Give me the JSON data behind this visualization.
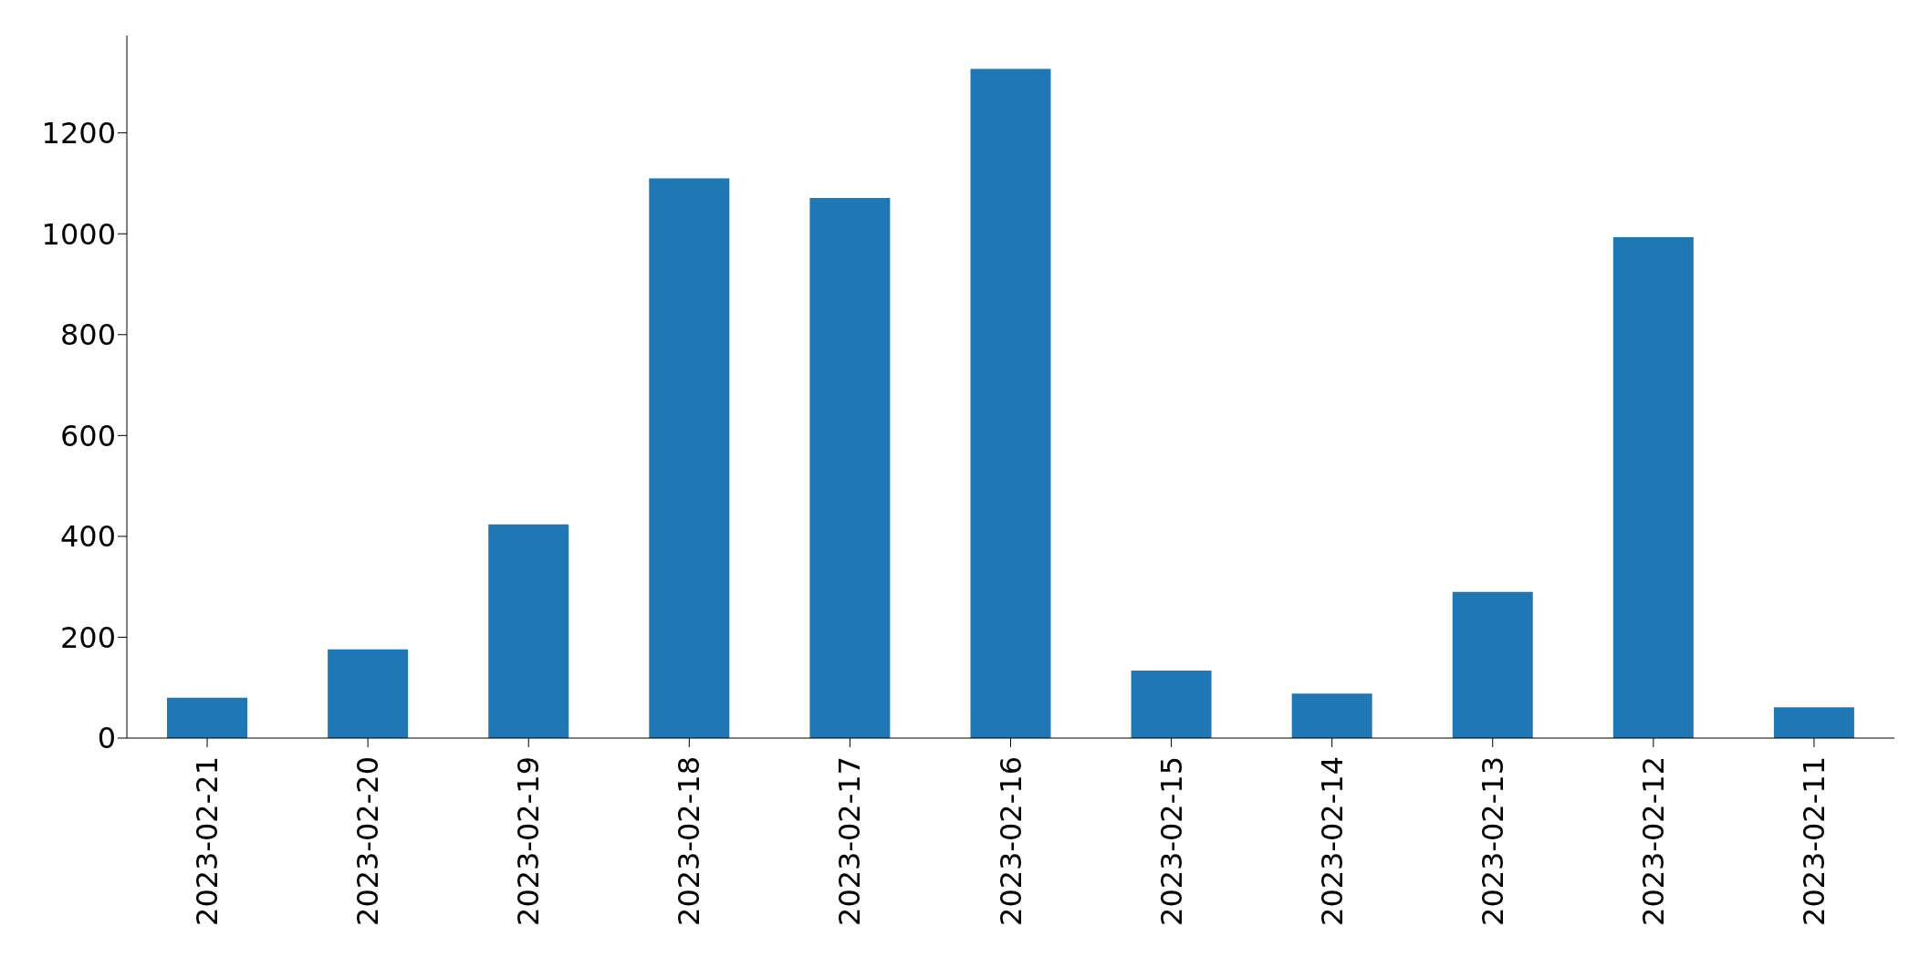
{
  "chart_data": {
    "type": "bar",
    "categories": [
      "2023-02-21",
      "2023-02-20",
      "2023-02-19",
      "2023-02-18",
      "2023-02-17",
      "2023-02-16",
      "2023-02-15",
      "2023-02-14",
      "2023-02-13",
      "2023-02-12",
      "2023-02-11"
    ],
    "values": [
      80,
      176,
      424,
      1110,
      1071,
      1327,
      134,
      88,
      290,
      993,
      61
    ],
    "color": "#1f77b4",
    "ylim": [
      0,
      1393
    ],
    "yticks": [
      0,
      200,
      400,
      600,
      800,
      1000,
      1200
    ],
    "grid": false
  }
}
